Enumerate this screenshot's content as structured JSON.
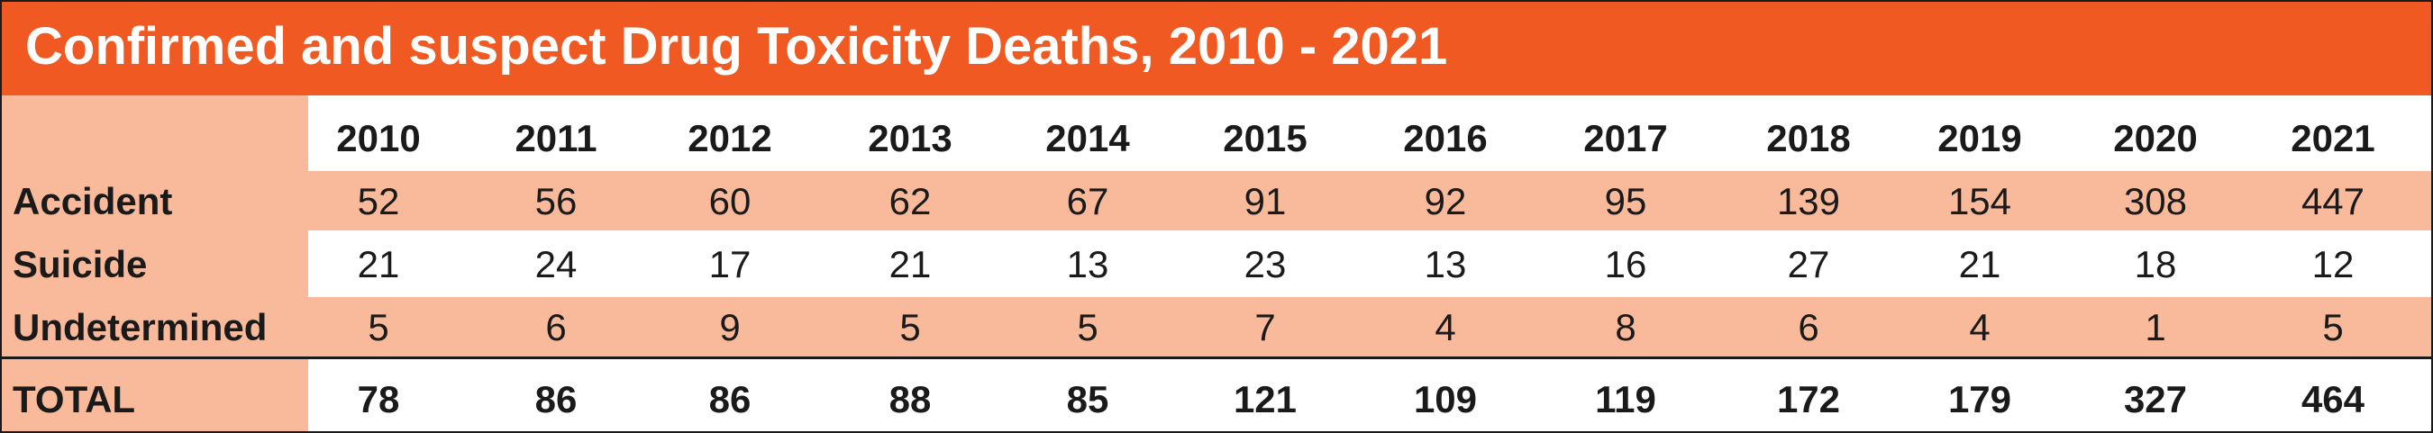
{
  "chart_data": {
    "type": "table",
    "title": "Confirmed and suspect Drug Toxicity Deaths, 2010 - 2021",
    "columns": [
      "2010",
      "2011",
      "2012",
      "2013",
      "2014",
      "2015",
      "2016",
      "2017",
      "2018",
      "2019",
      "2020",
      "2021"
    ],
    "rows": [
      {
        "label": "Accident",
        "values": [
          52,
          56,
          60,
          62,
          67,
          91,
          92,
          95,
          139,
          154,
          308,
          447
        ]
      },
      {
        "label": "Suicide",
        "values": [
          21,
          24,
          17,
          21,
          13,
          23,
          13,
          16,
          27,
          21,
          18,
          12
        ]
      },
      {
        "label": "Undetermined",
        "values": [
          5,
          6,
          9,
          5,
          5,
          7,
          4,
          8,
          6,
          4,
          1,
          5
        ]
      }
    ],
    "total": {
      "label": "TOTAL",
      "values": [
        78,
        86,
        86,
        88,
        85,
        121,
        109,
        119,
        172,
        179,
        327,
        464
      ]
    }
  },
  "colors": {
    "title_background": "#f05a22",
    "band_fill": "#f9b99b",
    "text": "#1a1a1a"
  }
}
